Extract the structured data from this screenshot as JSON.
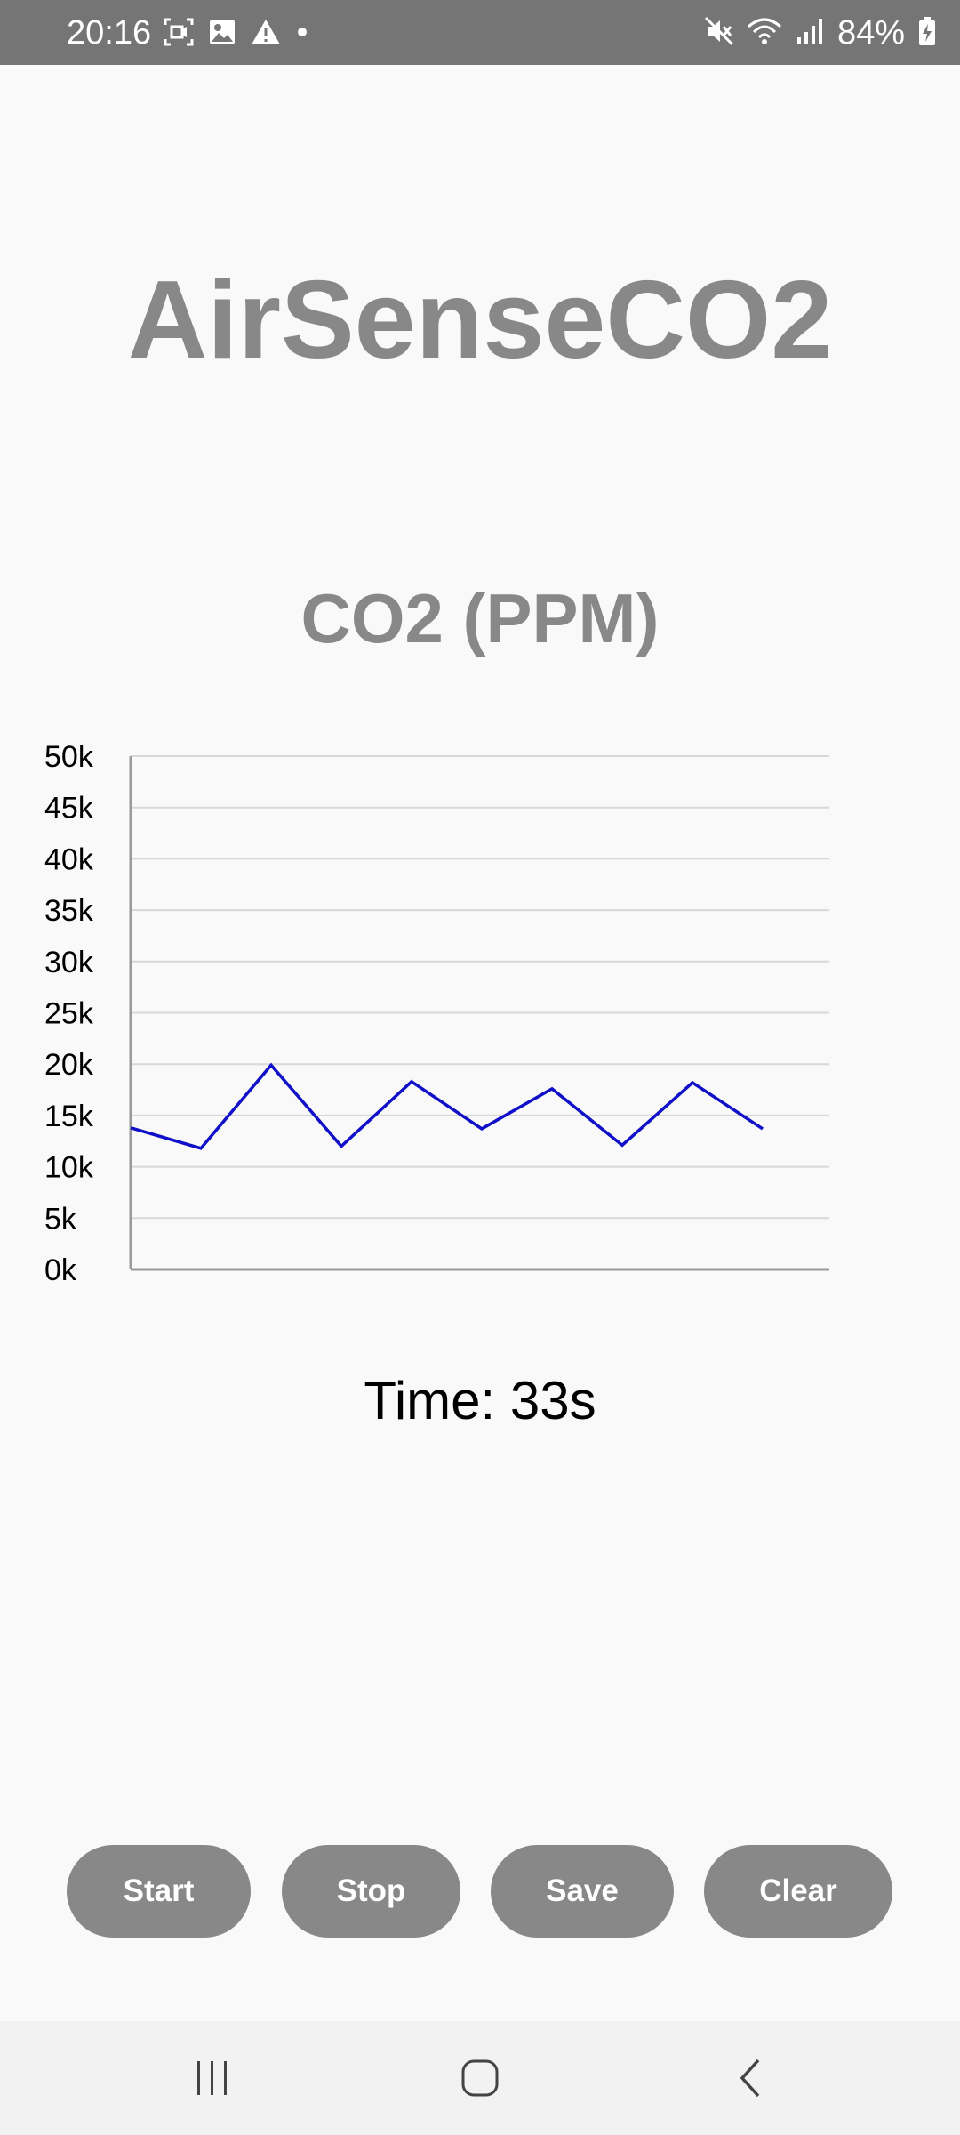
{
  "status_bar": {
    "time": "20:16",
    "battery": "84%",
    "left_icons": [
      "screen-record-icon",
      "gallery-icon",
      "warning-icon",
      "dot-icon"
    ],
    "right_icons": [
      "mute-icon",
      "wifi-icon",
      "signal-icon",
      "battery-charging-icon"
    ]
  },
  "app": {
    "title": "AirSenseCO2"
  },
  "chart": {
    "title": "CO2 (PPM)"
  },
  "chart_data": {
    "type": "line",
    "title": "CO2 (PPM)",
    "xlabel": "",
    "ylabel": "",
    "ylim": [
      0,
      50000
    ],
    "yticks": [
      "0k",
      "5k",
      "10k",
      "15k",
      "20k",
      "25k",
      "30k",
      "35k",
      "40k",
      "45k",
      "50k"
    ],
    "grid": true,
    "series": [
      {
        "color": "#1010c8",
        "values": [
          13800,
          11800,
          19900,
          12000,
          18300,
          13700,
          17600,
          12100,
          18200,
          13700
        ]
      }
    ]
  },
  "time": {
    "text": "Time: 33s"
  },
  "buttons": {
    "start": "Start",
    "stop": "Stop",
    "save": "Save",
    "clear": "Clear"
  },
  "colors": {
    "status_bar_bg": "#757575",
    "accent_gray": "#888888",
    "line": "#1010c8",
    "background": "#f9f9f9"
  }
}
